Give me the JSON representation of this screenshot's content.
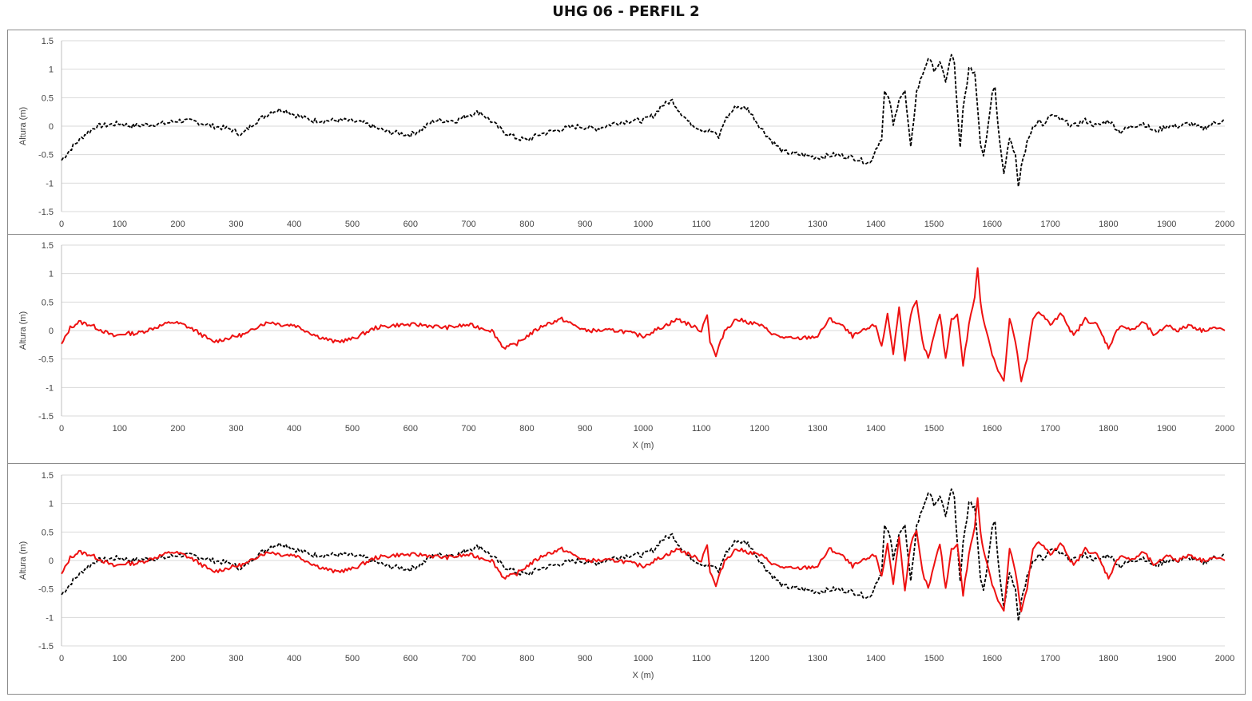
{
  "title": "UHG 06 - PERFIL 2",
  "colors": {
    "series_a": "#000000",
    "series_b": "#ee1111",
    "grid": "#d9d9d9",
    "axis": "#bfbfbf"
  },
  "chart_data": [
    {
      "type": "line",
      "ylabel": "Altura (m)",
      "xlabel": "",
      "xlim": [
        0,
        2000
      ],
      "ylim": [
        -1.5,
        1.5
      ],
      "xticks": [
        "0",
        "100",
        "200",
        "300",
        "400",
        "500",
        "600",
        "700",
        "800",
        "900",
        "1000",
        "1100",
        "1200",
        "1300",
        "1400",
        "1500",
        "1600",
        "1700",
        "1800",
        "1900",
        "2000"
      ],
      "yticks": [
        "-1.5",
        "-1",
        "-0.5",
        "0",
        "0.5",
        "1",
        "1.5"
      ],
      "grid": "horizontal",
      "series": [
        {
          "style": "dashed",
          "color": "#000000",
          "x": [
            0,
            20,
            40,
            60,
            80,
            100,
            120,
            150,
            180,
            200,
            230,
            260,
            290,
            310,
            330,
            360,
            380,
            400,
            430,
            460,
            490,
            520,
            560,
            600,
            620,
            640,
            680,
            700,
            720,
            760,
            780,
            800,
            820,
            860,
            890,
            920,
            950,
            980,
            1000,
            1020,
            1030,
            1050,
            1060,
            1080,
            1100,
            1120,
            1130,
            1140,
            1160,
            1180,
            1200,
            1220,
            1240,
            1270,
            1300,
            1330,
            1360,
            1390,
            1400,
            1410,
            1415,
            1425,
            1430,
            1440,
            1450,
            1460,
            1465,
            1470,
            1480,
            1490,
            1500,
            1510,
            1520,
            1530,
            1535,
            1540,
            1545,
            1550,
            1560,
            1570,
            1580,
            1585,
            1590,
            1600,
            1605,
            1610,
            1620,
            1630,
            1640,
            1645,
            1650,
            1660,
            1670,
            1680,
            1690,
            1700,
            1720,
            1740,
            1760,
            1780,
            1800,
            1820,
            1840,
            1860,
            1880,
            1900,
            1920,
            1940,
            1960,
            1980,
            2000
          ],
          "y": [
            -0.6,
            -0.35,
            -0.15,
            0.0,
            0.02,
            0.05,
            0.0,
            0.03,
            0.05,
            0.1,
            0.08,
            0.0,
            -0.05,
            -0.15,
            0.05,
            0.25,
            0.3,
            0.2,
            0.1,
            0.1,
            0.1,
            0.05,
            -0.1,
            -0.15,
            -0.05,
            0.1,
            0.1,
            0.2,
            0.25,
            -0.1,
            -0.2,
            -0.25,
            -0.15,
            -0.05,
            0.0,
            -0.05,
            0.05,
            0.1,
            0.1,
            0.2,
            0.35,
            0.45,
            0.3,
            0.05,
            -0.05,
            -0.1,
            -0.2,
            0.1,
            0.35,
            0.3,
            0.0,
            -0.25,
            -0.45,
            -0.5,
            -0.55,
            -0.5,
            -0.55,
            -0.65,
            -0.4,
            -0.2,
            0.6,
            0.4,
            0.0,
            0.5,
            0.6,
            -0.4,
            0.1,
            0.6,
            0.9,
            1.2,
            1.0,
            1.1,
            0.8,
            1.25,
            1.1,
            0.3,
            -0.4,
            0.3,
            1.0,
            0.95,
            -0.3,
            -0.5,
            -0.2,
            0.6,
            0.7,
            0.0,
            -0.8,
            -0.2,
            -0.5,
            -1.1,
            -0.7,
            -0.3,
            0.0,
            0.1,
            0.0,
            0.2,
            0.1,
            0.0,
            0.1,
            0.0,
            0.1,
            -0.1,
            0.0,
            0.05,
            -0.1,
            0.0,
            0.0,
            0.05,
            -0.05,
            0.05,
            0.1
          ]
        }
      ]
    },
    {
      "type": "line",
      "ylabel": "Altura (m)",
      "xlabel": "X (m)",
      "xlim": [
        0,
        2000
      ],
      "ylim": [
        -1.5,
        1.5
      ],
      "xticks": [
        "0",
        "100",
        "200",
        "300",
        "400",
        "500",
        "600",
        "700",
        "800",
        "900",
        "1000",
        "1100",
        "1200",
        "1300",
        "1400",
        "1500",
        "1600",
        "1700",
        "1800",
        "1900",
        "2000"
      ],
      "yticks": [
        "-1.5",
        "-1",
        "-0.5",
        "0",
        "0.5",
        "1",
        "1.5"
      ],
      "grid": "horizontal",
      "series": [
        {
          "style": "solid",
          "color": "#ee1111",
          "x": [
            0,
            15,
            30,
            50,
            70,
            90,
            110,
            130,
            160,
            190,
            210,
            230,
            260,
            300,
            320,
            340,
            360,
            380,
            400,
            440,
            470,
            500,
            540,
            580,
            620,
            660,
            700,
            740,
            760,
            780,
            800,
            830,
            860,
            880,
            900,
            920,
            960,
            1000,
            1020,
            1040,
            1060,
            1080,
            1100,
            1110,
            1115,
            1125,
            1130,
            1140,
            1160,
            1200,
            1230,
            1260,
            1300,
            1320,
            1340,
            1360,
            1380,
            1400,
            1410,
            1420,
            1430,
            1440,
            1450,
            1460,
            1470,
            1480,
            1490,
            1500,
            1510,
            1520,
            1530,
            1540,
            1550,
            1560,
            1570,
            1575,
            1580,
            1585,
            1590,
            1600,
            1610,
            1620,
            1630,
            1640,
            1650,
            1660,
            1670,
            1680,
            1700,
            1720,
            1740,
            1760,
            1780,
            1800,
            1820,
            1840,
            1860,
            1880,
            1900,
            1920,
            1940,
            1960,
            1980,
            2000
          ],
          "y": [
            -0.25,
            0.05,
            0.15,
            0.1,
            0.0,
            -0.1,
            -0.05,
            -0.05,
            0.05,
            0.15,
            0.1,
            0.0,
            -0.2,
            -0.1,
            -0.05,
            0.1,
            0.15,
            0.1,
            0.1,
            -0.1,
            -0.2,
            -0.15,
            0.05,
            0.1,
            0.1,
            0.05,
            0.1,
            0.0,
            -0.3,
            -0.25,
            -0.1,
            0.1,
            0.2,
            0.1,
            0.0,
            0.0,
            0.0,
            -0.1,
            0.0,
            0.1,
            0.2,
            0.1,
            0.0,
            0.3,
            -0.2,
            -0.45,
            -0.3,
            0.0,
            0.2,
            0.1,
            -0.1,
            -0.15,
            -0.1,
            0.2,
            0.1,
            -0.1,
            0.0,
            0.1,
            -0.3,
            0.3,
            -0.4,
            0.4,
            -0.5,
            0.3,
            0.5,
            -0.2,
            -0.5,
            -0.1,
            0.3,
            -0.5,
            0.2,
            0.3,
            -0.6,
            0.1,
            0.6,
            1.1,
            0.5,
            0.2,
            0.0,
            -0.4,
            -0.7,
            -0.9,
            0.2,
            -0.2,
            -0.9,
            -0.5,
            0.2,
            0.35,
            0.1,
            0.3,
            -0.1,
            0.2,
            0.1,
            -0.3,
            0.1,
            0.0,
            0.15,
            -0.1,
            0.1,
            0.0,
            0.1,
            0.0,
            0.05,
            0.0
          ]
        }
      ]
    },
    {
      "type": "line",
      "ylabel": "Altura (m)",
      "xlabel": "X (m)",
      "xlim": [
        0,
        2000
      ],
      "ylim": [
        -1.5,
        1.5
      ],
      "xticks": [
        "0",
        "100",
        "200",
        "300",
        "400",
        "500",
        "600",
        "700",
        "800",
        "900",
        "1000",
        "1100",
        "1200",
        "1300",
        "1400",
        "1500",
        "1600",
        "1700",
        "1800",
        "1900",
        "2000"
      ],
      "yticks": [
        "-1.5",
        "-1",
        "-0.5",
        "0",
        "0.5",
        "1",
        "1.5"
      ],
      "grid": "horizontal",
      "series_from_panels": [
        0,
        1
      ]
    }
  ]
}
